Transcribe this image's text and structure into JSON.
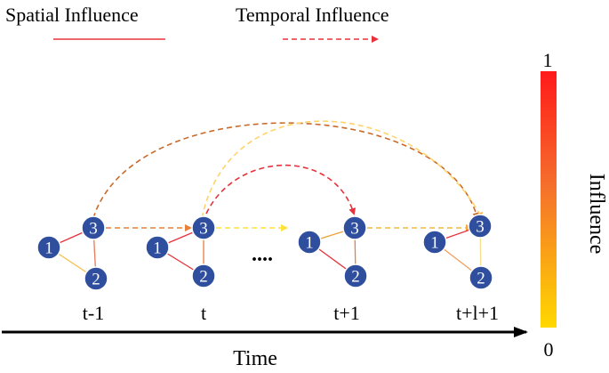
{
  "legend": {
    "spatial_label": "Spatial Influence",
    "temporal_label": "Temporal Influence"
  },
  "colorbar": {
    "title": "Influence",
    "max_label": "1",
    "min_label": "0",
    "color_high": "#ff1a1a",
    "color_low": "#ffd800"
  },
  "axis": {
    "label": "Time"
  },
  "time_steps": [
    {
      "label": "t-1"
    },
    {
      "label": "t"
    },
    {
      "label": "t+1"
    },
    {
      "label": "t+l+1"
    }
  ],
  "ellipsis": "....",
  "nodes": {
    "n1": "1",
    "n2": "2",
    "n3": "3"
  },
  "colors": {
    "node_fill": "#2f4f9e",
    "spatial_edge": "#e8323c",
    "temporal_edge": "#e8323c",
    "axis": "#000000"
  }
}
